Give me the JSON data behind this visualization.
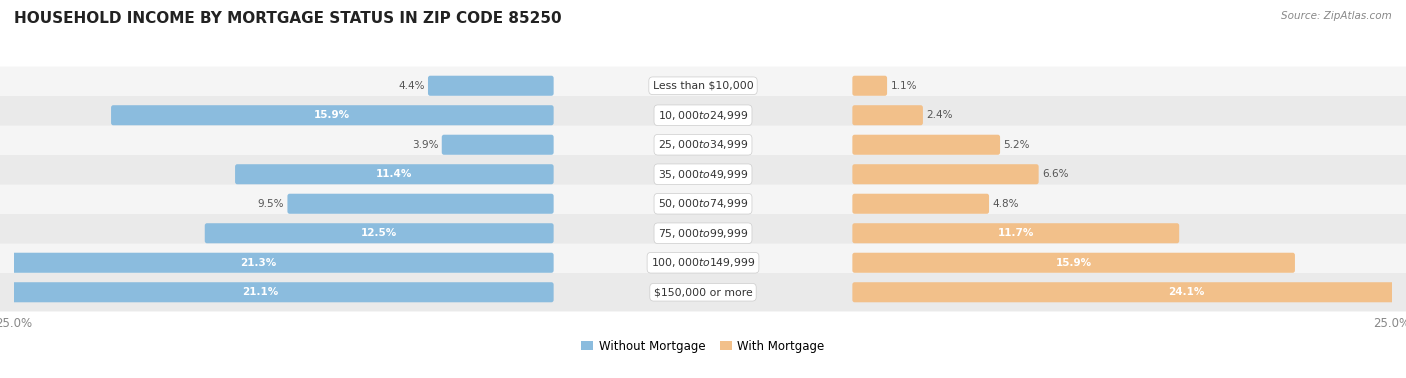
{
  "title": "HOUSEHOLD INCOME BY MORTGAGE STATUS IN ZIP CODE 85250",
  "source": "Source: ZipAtlas.com",
  "categories": [
    "Less than $10,000",
    "$10,000 to $24,999",
    "$25,000 to $34,999",
    "$35,000 to $49,999",
    "$50,000 to $74,999",
    "$75,000 to $99,999",
    "$100,000 to $149,999",
    "$150,000 or more"
  ],
  "without_mortgage": [
    4.4,
    15.9,
    3.9,
    11.4,
    9.5,
    12.5,
    21.3,
    21.1
  ],
  "with_mortgage": [
    1.1,
    2.4,
    5.2,
    6.6,
    4.8,
    11.7,
    15.9,
    24.1
  ],
  "color_without": "#8BBCDE",
  "color_with": "#F2C08A",
  "bg_row_odd": "#F5F5F5",
  "bg_row_even": "#EAEAEA",
  "axis_max": 25.0,
  "bar_height": 0.52,
  "title_fontsize": 11,
  "label_fontsize": 7.5,
  "cat_fontsize": 7.8,
  "tick_fontsize": 8.5,
  "legend_fontsize": 8.5
}
